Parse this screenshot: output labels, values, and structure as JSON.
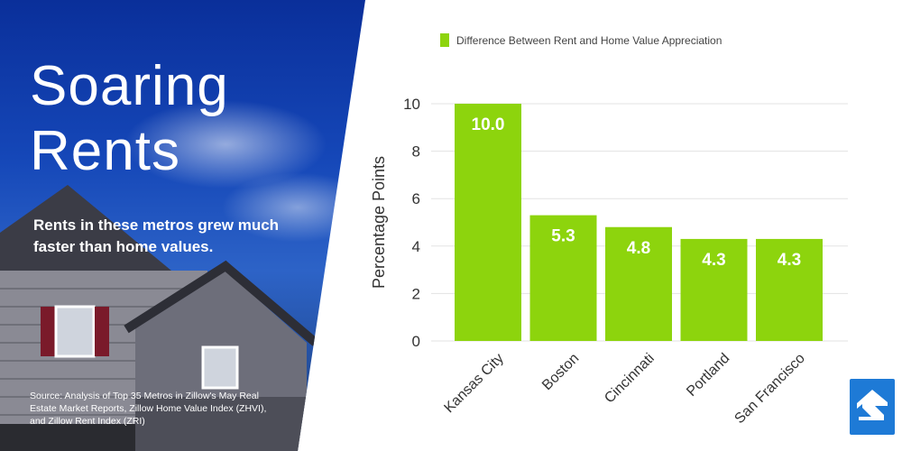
{
  "hero": {
    "title": "Soaring\nRents",
    "subtitle": "Rents in these metros grew much faster than home values.",
    "source": "Source: Analysis of Top 35 Metros in Zillow's May Real Estate Market Reports, Zillow Home Value Index (ZHVI), and Zillow Rent Index (ZRI)"
  },
  "colors": {
    "bar": "#8dd40d",
    "sky": "#1547b8",
    "logo": "#1e7ad6"
  },
  "logo": {
    "icon": "zillow-logo-icon"
  },
  "chart_data": {
    "type": "bar",
    "categories": [
      "Kansas City",
      "Boston",
      "Cincinnati",
      "Portland",
      "San Francisco"
    ],
    "series": [
      {
        "name": "Difference Between Rent and Home Value Appreciation",
        "values": [
          10.0,
          5.3,
          4.8,
          4.3,
          4.3
        ]
      }
    ],
    "data_labels": [
      "10.0",
      "5.3",
      "4.8",
      "4.3",
      "4.3"
    ],
    "ylabel": "Percentage Points",
    "xlabel": "",
    "ylim": [
      0,
      10
    ],
    "yticks": [
      0,
      2,
      4,
      6,
      8,
      10
    ],
    "grid": true,
    "legend_position": "top"
  }
}
